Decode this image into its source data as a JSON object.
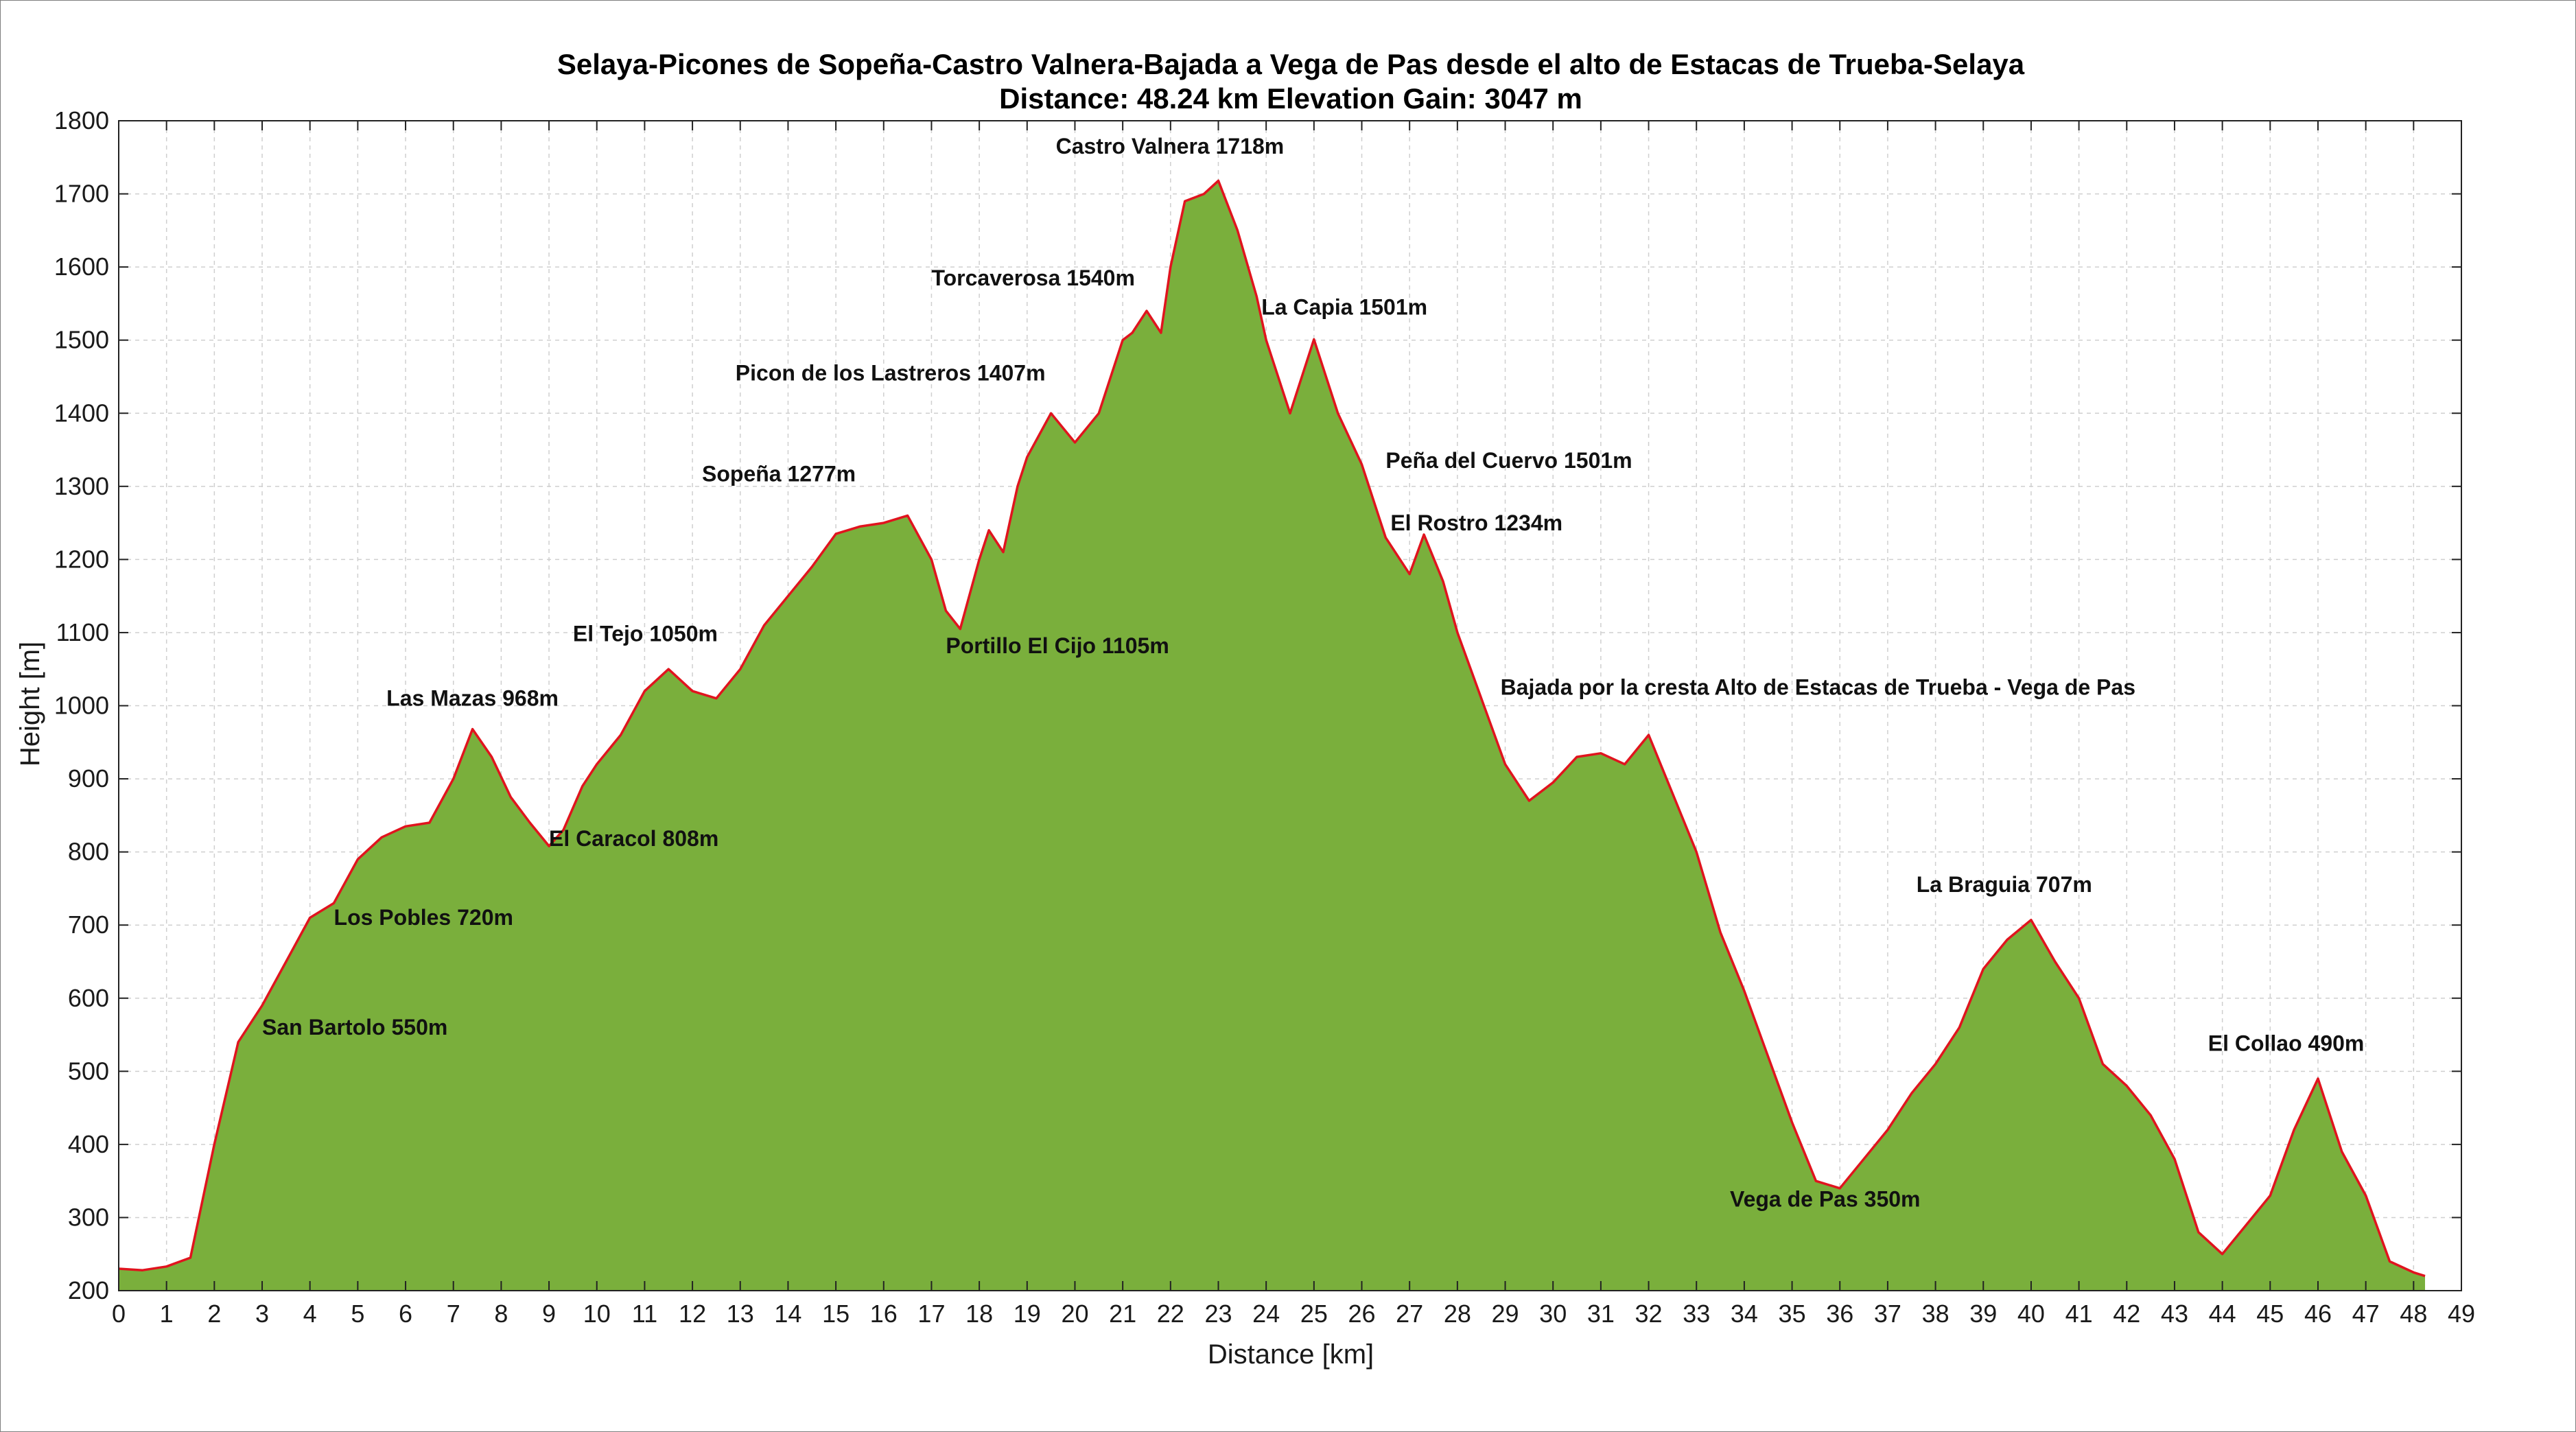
{
  "chart_data": {
    "type": "area",
    "title": "Selaya-Picones de Sopeña-Castro Valnera-Bajada a Vega de Pas desde el alto de Estacas de Trueba-Selaya",
    "subtitle": "Distance: 48.24 km  Elevation Gain: 3047 m",
    "xlabel": "Distance [km]",
    "ylabel": "Height [m]",
    "xlim": [
      0,
      49
    ],
    "ylim": [
      200,
      1800
    ],
    "xticks": [
      "0",
      "1",
      "2",
      "3",
      "4",
      "5",
      "6",
      "7",
      "8",
      "9",
      "10",
      "11",
      "12",
      "13",
      "14",
      "15",
      "16",
      "17",
      "18",
      "19",
      "20",
      "21",
      "22",
      "23",
      "24",
      "25",
      "26",
      "27",
      "28",
      "29",
      "30",
      "31",
      "32",
      "33",
      "34",
      "35",
      "36",
      "37",
      "38",
      "39",
      "40",
      "41",
      "42",
      "43",
      "44",
      "45",
      "46",
      "47",
      "48",
      "49"
    ],
    "yticks": [
      "200",
      "300",
      "400",
      "500",
      "600",
      "700",
      "800",
      "900",
      "1000",
      "1100",
      "1200",
      "1300",
      "1400",
      "1500",
      "1600",
      "1700",
      "1800"
    ],
    "grid": true,
    "fill_color": "#7aaf3c",
    "line_color": "#e0141e",
    "x": [
      0,
      0.5,
      1,
      1.5,
      2,
      2.5,
      3,
      3.5,
      4,
      4.5,
      5,
      5.5,
      6,
      6.5,
      7,
      7.4,
      7.8,
      8.2,
      8.6,
      9,
      9.3,
      9.7,
      10,
      10.5,
      11,
      11.5,
      12,
      12.5,
      13,
      13.5,
      14,
      14.5,
      15,
      15.5,
      16,
      16.5,
      17,
      17.3,
      17.6,
      18,
      18.2,
      18.5,
      18.8,
      19,
      19.5,
      20,
      20.5,
      21,
      21.2,
      21.5,
      21.8,
      22,
      22.3,
      22.7,
      23,
      23.4,
      23.8,
      24,
      24.5,
      25,
      25.5,
      26,
      26.5,
      27,
      27.3,
      27.7,
      28,
      28.5,
      29,
      29.5,
      30,
      30.5,
      31,
      31.5,
      32,
      32.5,
      33,
      33.5,
      34,
      34.5,
      35,
      35.5,
      36,
      36.5,
      37,
      37.5,
      38,
      38.5,
      39,
      39.5,
      40,
      40.5,
      41,
      41.5,
      42,
      42.5,
      43,
      43.5,
      44,
      44.5,
      45,
      45.5,
      46,
      46.5,
      47,
      47.5,
      48,
      48.24
    ],
    "y": [
      230,
      228,
      233,
      245,
      400,
      540,
      590,
      650,
      710,
      730,
      790,
      820,
      835,
      840,
      900,
      968,
      930,
      875,
      840,
      808,
      830,
      890,
      920,
      960,
      1020,
      1050,
      1020,
      1010,
      1050,
      1110,
      1150,
      1190,
      1235,
      1245,
      1250,
      1260,
      1200,
      1130,
      1105,
      1200,
      1240,
      1210,
      1300,
      1340,
      1400,
      1360,
      1400,
      1500,
      1510,
      1540,
      1510,
      1600,
      1690,
      1700,
      1718,
      1650,
      1560,
      1500,
      1400,
      1501,
      1400,
      1330,
      1230,
      1180,
      1234,
      1170,
      1100,
      1010,
      920,
      870,
      895,
      930,
      935,
      920,
      960,
      880,
      800,
      690,
      610,
      520,
      430,
      350,
      340,
      380,
      420,
      470,
      510,
      560,
      640,
      680,
      707,
      650,
      600,
      510,
      480,
      440,
      380,
      280,
      250,
      290,
      330,
      420,
      490,
      390,
      330,
      240,
      225,
      220
    ],
    "annotations": [
      {
        "label": "San Bartolo 550m",
        "x": 3.0,
        "y": 550
      },
      {
        "label": "Los Pobles 720m",
        "x": 4.5,
        "y": 700
      },
      {
        "label": "Las Mazas 968m",
        "x": 5.6,
        "y": 1000
      },
      {
        "label": "El Caracol 808m",
        "x": 9.0,
        "y": 808
      },
      {
        "label": "El Tejo 1050m",
        "x": 9.5,
        "y": 1088
      },
      {
        "label": "Sopeña 1277m",
        "x": 12.2,
        "y": 1307
      },
      {
        "label": "Portillo El Cijo 1105m",
        "x": 17.3,
        "y": 1072
      },
      {
        "label": "Picon de los Lastreros 1407m",
        "x": 12.9,
        "y": 1445
      },
      {
        "label": "Torcaverosa 1540m",
        "x": 17.0,
        "y": 1575
      },
      {
        "label": "Castro Valnera 1718m",
        "x": 19.6,
        "y": 1755
      },
      {
        "label": "La Capia 1501m",
        "x": 23.9,
        "y": 1535
      },
      {
        "label": "Peña del Cuervo 1501m",
        "x": 26.5,
        "y": 1325
      },
      {
        "label": "El Rostro 1234m",
        "x": 26.6,
        "y": 1240
      },
      {
        "label": "Bajada por la cresta Alto de Estacas de Trueba - Vega de Pas",
        "x": 28.9,
        "y": 1015
      },
      {
        "label": "Vega de Pas 350m",
        "x": 33.7,
        "y": 315
      },
      {
        "label": "La Braguia 707m",
        "x": 37.6,
        "y": 745
      },
      {
        "label": "El Collao 490m",
        "x": 43.7,
        "y": 528
      }
    ]
  }
}
